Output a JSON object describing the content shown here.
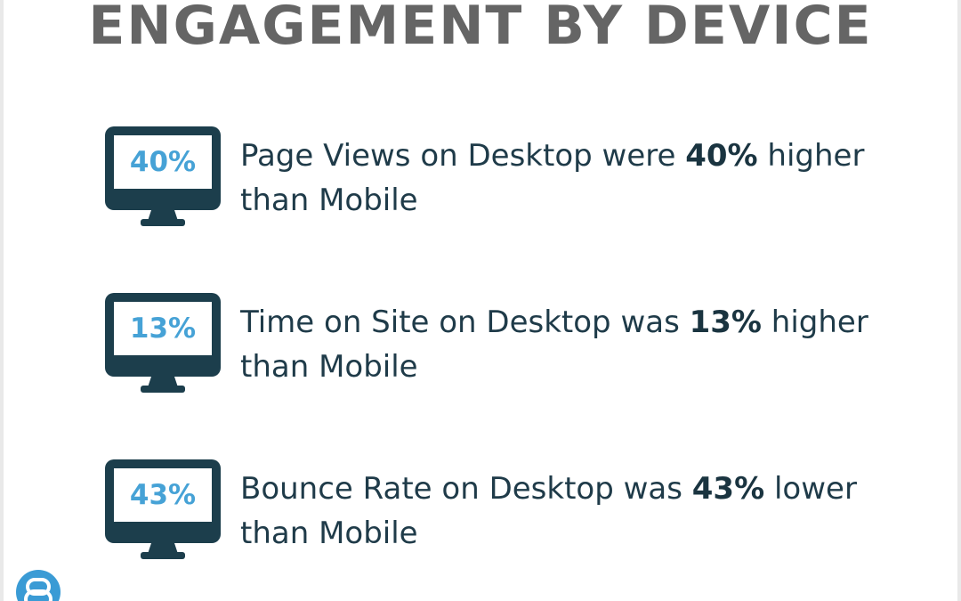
{
  "title": "ENGAGEMENT BY DEVICE",
  "stats": [
    {
      "value": "40%",
      "text_before": "Page Views on Desktop were ",
      "highlight": "40%",
      "text_after": " higher than Mobile"
    },
    {
      "value": "13%",
      "text_before": "Time on Site on Desktop was ",
      "highlight": "13%",
      "text_after": " higher than Mobile"
    },
    {
      "value": "43%",
      "text_before": "Bounce Rate on Desktop was ",
      "highlight": "43%",
      "text_after": " lower than Mobile"
    }
  ],
  "icons": {
    "monitor": "desktop-monitor-icon",
    "logo": "brand-logo-icon"
  },
  "colors": {
    "title": "#656565",
    "monitor": "#1c3e4c",
    "value": "#46a2d6",
    "text": "#1f3b49",
    "logo": "#3a9bd5"
  }
}
